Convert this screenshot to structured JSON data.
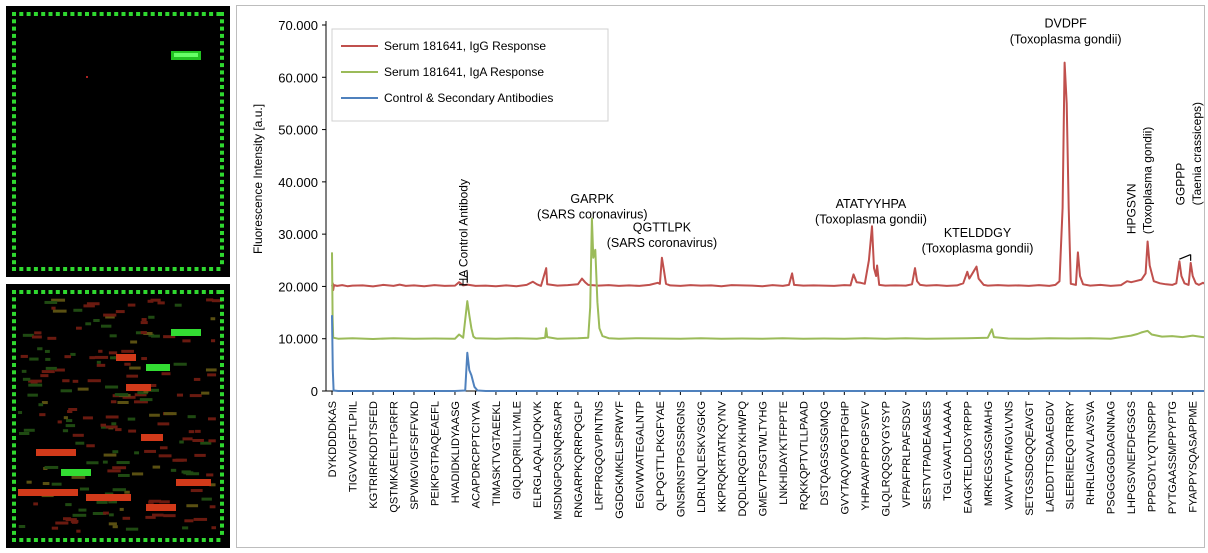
{
  "chart_data": {
    "type": "line",
    "ylabel": "Fluorescence Intensity [a.u.]",
    "ylim": [
      0,
      70000
    ],
    "yticks": [
      0,
      10000,
      20000,
      30000,
      40000,
      50000,
      60000,
      70000
    ],
    "ytick_labels": [
      "0",
      "10.000",
      "20.000",
      "30.000",
      "40.000",
      "50.000",
      "60.000",
      "70.000"
    ],
    "grid": false,
    "legend": "top-left",
    "categories": [
      "DYKDDDDKAS",
      "TIGVVVIGFTLPIIL",
      "KGTRIRFKDDTSFED",
      "QSTMKAEELTPGRFR",
      "SPVMGVIGFSFFVKD",
      "PEIKPGTPAQEAEFL",
      "HVADIDKLIDYAASG",
      "ACAPDRCPPTCIYVA",
      "TIMASKTVGTAEEKL",
      "GIQLDQRIILLYMLE",
      "ELRGLAQALIDQKVK",
      "MSDNGPQSNQRSAPR",
      "RNGARPKQRRPQGLP",
      "LRFPRGQGVPINTNS",
      "GGDGKMKELSPRWYF",
      "EGIVWVATEGALNTP",
      "QLPQGTTLPKGFYAE",
      "GNSRNSTPGSSRGNS",
      "LDRLNQLESKVSGKG",
      "KKPRQKRTATKQYNV",
      "DQDLIRQGDYKHWPQ",
      "GMEVTPSGTWLTYHG",
      "LNKHIDAYKTFPPTE",
      "RQKKQPTVTLLPAAD",
      "DSTQAGSGSGMQG",
      "GVYTAQVVPGTPGHP",
      "YHPAAVPPPGPSVFV",
      "GLQLRQQSQYGYSYP",
      "VFPAFPRLPAFSDSV",
      "SESTVTPADEAASES",
      "TGLGVAATLAAAAA",
      "EAGKTELDDGYRPPP",
      "MRKEGSGSGMAHG",
      "VAVVFVVFMGVLVNS",
      "SETGSSDGQQEAVGT",
      "LAEDDTTSDAAEGDV",
      "SLEERIEEQGTRRRY",
      "RHRLIGAVVLAVSVA",
      "PSGGGGGDAGNNAG",
      "LHPGSVNEFDFGSGS",
      "PPPGDYLYQTNSPPP",
      "PYTGAASSMPPYPTG",
      "FYAPPYSQASAPPME"
    ],
    "series": [
      {
        "name": "Serum 181641, IgG Response",
        "color": "#c0504d",
        "points": [
          [
            0.0,
            20000
          ],
          [
            0.04,
            20600
          ],
          [
            0.06,
            19300
          ],
          [
            0.1,
            20250
          ],
          [
            0.25,
            20100
          ],
          [
            0.5,
            20250
          ],
          [
            0.75,
            20050
          ],
          [
            1.0,
            20150
          ],
          [
            1.5,
            20200
          ],
          [
            2.0,
            20000
          ],
          [
            2.5,
            20300
          ],
          [
            3.0,
            20100
          ],
          [
            3.3,
            20350
          ],
          [
            3.6,
            20100
          ],
          [
            4.0,
            20200
          ],
          [
            4.5,
            20050
          ],
          [
            5.0,
            20250
          ],
          [
            5.5,
            20100
          ],
          [
            6.0,
            20150
          ],
          [
            6.2,
            20800
          ],
          [
            6.4,
            20200
          ],
          [
            6.6,
            20350
          ],
          [
            7.0,
            20100
          ],
          [
            7.5,
            20150
          ],
          [
            8.0,
            20050
          ],
          [
            8.5,
            20200
          ],
          [
            9.0,
            20050
          ],
          [
            9.5,
            20300
          ],
          [
            9.8,
            20900
          ],
          [
            10.0,
            20400
          ],
          [
            10.2,
            20100
          ],
          [
            10.45,
            23500
          ],
          [
            10.5,
            20400
          ],
          [
            11.0,
            20150
          ],
          [
            11.5,
            20250
          ],
          [
            12.0,
            20400
          ],
          [
            12.2,
            21500
          ],
          [
            12.35,
            20800
          ],
          [
            12.5,
            20300
          ],
          [
            13.0,
            20150
          ],
          [
            13.5,
            20250
          ],
          [
            14.0,
            20100
          ],
          [
            14.5,
            20200
          ],
          [
            15.0,
            20100
          ],
          [
            15.5,
            20300
          ],
          [
            15.9,
            20700
          ],
          [
            16.0,
            20500
          ],
          [
            16.1,
            25500
          ],
          [
            16.2,
            23000
          ],
          [
            16.3,
            20500
          ],
          [
            16.5,
            20200
          ],
          [
            17.0,
            20100
          ],
          [
            17.5,
            20250
          ],
          [
            18.0,
            20150
          ],
          [
            18.5,
            20200
          ],
          [
            19.0,
            20050
          ],
          [
            19.5,
            20250
          ],
          [
            20.0,
            20200
          ],
          [
            20.5,
            20150
          ],
          [
            21.0,
            20050
          ],
          [
            21.5,
            20250
          ],
          [
            22.0,
            20100
          ],
          [
            22.3,
            20300
          ],
          [
            22.45,
            22500
          ],
          [
            22.55,
            20300
          ],
          [
            23.0,
            20150
          ],
          [
            23.5,
            20200
          ],
          [
            24.0,
            20150
          ],
          [
            24.5,
            20100
          ],
          [
            25.0,
            20250
          ],
          [
            25.3,
            20200
          ],
          [
            25.45,
            22300
          ],
          [
            25.6,
            20800
          ],
          [
            25.8,
            20700
          ],
          [
            26.0,
            20500
          ],
          [
            26.2,
            25000
          ],
          [
            26.35,
            31500
          ],
          [
            26.45,
            23500
          ],
          [
            26.55,
            22000
          ],
          [
            26.6,
            24000
          ],
          [
            26.7,
            20300
          ],
          [
            27.0,
            20150
          ],
          [
            27.5,
            20200
          ],
          [
            28.0,
            20150
          ],
          [
            28.3,
            20400
          ],
          [
            28.45,
            23500
          ],
          [
            28.55,
            21000
          ],
          [
            28.7,
            20300
          ],
          [
            29.0,
            20150
          ],
          [
            29.5,
            20250
          ],
          [
            30.0,
            20100
          ],
          [
            30.5,
            20200
          ],
          [
            30.8,
            20600
          ],
          [
            31.0,
            22800
          ],
          [
            31.1,
            21500
          ],
          [
            31.3,
            22800
          ],
          [
            31.45,
            23800
          ],
          [
            31.55,
            21500
          ],
          [
            31.8,
            20300
          ],
          [
            32.0,
            20150
          ],
          [
            32.5,
            20250
          ],
          [
            33.0,
            20150
          ],
          [
            33.5,
            20200
          ],
          [
            34.0,
            20100
          ],
          [
            34.5,
            20250
          ],
          [
            35.0,
            20100
          ],
          [
            35.3,
            20300
          ],
          [
            35.5,
            21000
          ],
          [
            35.65,
            35000
          ],
          [
            35.75,
            62800
          ],
          [
            35.85,
            55000
          ],
          [
            35.95,
            35000
          ],
          [
            36.05,
            20500
          ],
          [
            36.3,
            20300
          ],
          [
            36.4,
            26500
          ],
          [
            36.5,
            22000
          ],
          [
            36.65,
            20400
          ],
          [
            37.0,
            20150
          ],
          [
            37.5,
            20300
          ],
          [
            38.0,
            20100
          ],
          [
            38.5,
            20250
          ],
          [
            38.8,
            21000
          ],
          [
            39.0,
            20800
          ],
          [
            39.2,
            21000
          ],
          [
            39.5,
            21300
          ],
          [
            39.7,
            22500
          ],
          [
            39.8,
            28600
          ],
          [
            39.9,
            24000
          ],
          [
            40.1,
            21000
          ],
          [
            40.4,
            20600
          ],
          [
            40.7,
            20400
          ],
          [
            41.0,
            20300
          ],
          [
            41.2,
            20600
          ],
          [
            41.35,
            24800
          ],
          [
            41.45,
            22000
          ],
          [
            41.6,
            20600
          ],
          [
            41.8,
            20300
          ],
          [
            41.9,
            24500
          ],
          [
            42.0,
            22000
          ],
          [
            42.15,
            20600
          ],
          [
            42.3,
            20300
          ],
          [
            42.5,
            20700
          ],
          [
            42.7,
            20300
          ],
          [
            42.85,
            21500
          ],
          [
            43.0,
            20200
          ]
        ]
      },
      {
        "name": "Serum 181641, IgA Response",
        "color": "#9bbb59",
        "points": [
          [
            0.0,
            26500
          ],
          [
            0.03,
            14000
          ],
          [
            0.06,
            10200
          ],
          [
            0.3,
            10000
          ],
          [
            1.0,
            10100
          ],
          [
            2.0,
            9950
          ],
          [
            3.0,
            10100
          ],
          [
            4.0,
            10000
          ],
          [
            5.0,
            10050
          ],
          [
            6.0,
            10000
          ],
          [
            6.2,
            10800
          ],
          [
            6.4,
            10200
          ],
          [
            6.6,
            17200
          ],
          [
            6.7,
            14500
          ],
          [
            6.8,
            12000
          ],
          [
            6.9,
            10400
          ],
          [
            7.0,
            10100
          ],
          [
            8.0,
            10000
          ],
          [
            9.0,
            10100
          ],
          [
            10.0,
            10000
          ],
          [
            10.4,
            10200
          ],
          [
            10.45,
            12000
          ],
          [
            10.5,
            10300
          ],
          [
            11.0,
            10000
          ],
          [
            12.0,
            10100
          ],
          [
            12.5,
            10200
          ],
          [
            12.6,
            16000
          ],
          [
            12.68,
            33000
          ],
          [
            12.75,
            25500
          ],
          [
            12.85,
            27000
          ],
          [
            12.95,
            17000
          ],
          [
            13.05,
            12000
          ],
          [
            13.2,
            10500
          ],
          [
            13.5,
            10100
          ],
          [
            14.0,
            10000
          ],
          [
            15.0,
            10100
          ],
          [
            16.0,
            10050
          ],
          [
            17.0,
            10000
          ],
          [
            18.0,
            10100
          ],
          [
            19.0,
            10000
          ],
          [
            20.0,
            10050
          ],
          [
            21.0,
            10000
          ],
          [
            22.0,
            10100
          ],
          [
            23.0,
            10000
          ],
          [
            24.0,
            10050
          ],
          [
            25.0,
            10000
          ],
          [
            26.0,
            10100
          ],
          [
            27.0,
            10000
          ],
          [
            28.0,
            10100
          ],
          [
            29.0,
            10000
          ],
          [
            30.0,
            10050
          ],
          [
            31.0,
            10100
          ],
          [
            32.0,
            10200
          ],
          [
            32.2,
            11800
          ],
          [
            32.3,
            10300
          ],
          [
            33.0,
            10050
          ],
          [
            34.0,
            10000
          ],
          [
            35.0,
            10100
          ],
          [
            36.0,
            10050
          ],
          [
            37.0,
            10100
          ],
          [
            38.0,
            10000
          ],
          [
            38.5,
            10300
          ],
          [
            39.0,
            10600
          ],
          [
            39.3,
            10900
          ],
          [
            39.5,
            11200
          ],
          [
            39.8,
            11500
          ],
          [
            40.0,
            10800
          ],
          [
            40.5,
            10400
          ],
          [
            41.0,
            10500
          ],
          [
            41.5,
            10300
          ],
          [
            42.0,
            10600
          ],
          [
            42.5,
            10300
          ],
          [
            43.0,
            10200
          ]
        ]
      },
      {
        "name": "Control & Secondary Antibodies",
        "color": "#4f81bd",
        "points": [
          [
            0.0,
            14500
          ],
          [
            0.04,
            4000
          ],
          [
            0.08,
            100
          ],
          [
            0.3,
            0
          ],
          [
            2.0,
            0
          ],
          [
            4.0,
            0
          ],
          [
            6.0,
            0
          ],
          [
            6.5,
            100
          ],
          [
            6.6,
            7300
          ],
          [
            6.7,
            4000
          ],
          [
            6.8,
            3000
          ],
          [
            6.95,
            800
          ],
          [
            7.1,
            100
          ],
          [
            7.5,
            0
          ],
          [
            10.0,
            0
          ],
          [
            20.0,
            0
          ],
          [
            30.0,
            0
          ],
          [
            40.0,
            0
          ],
          [
            43.0,
            0
          ]
        ]
      }
    ],
    "annotations": [
      {
        "text": "HA Control Antibody",
        "x": 6.6,
        "y": 20000,
        "rotate": true
      },
      {
        "text": "GARPK",
        "x": 12.7,
        "y": 36000
      },
      {
        "text": "(SARS coronavirus)",
        "x": 12.7,
        "y": 33000
      },
      {
        "text": "QGTTLPK",
        "x": 16.1,
        "y": 30500
      },
      {
        "text": "(SARS coronavirus)",
        "x": 16.1,
        "y": 27500
      },
      {
        "text": "ATATYYHPA",
        "x": 26.3,
        "y": 35000
      },
      {
        "text": "(Toxoplasma gondii)",
        "x": 26.3,
        "y": 32000
      },
      {
        "text": "KTELDDGY",
        "x": 31.5,
        "y": 29500
      },
      {
        "text": "(Toxoplasma gondii)",
        "x": 31.5,
        "y": 26500
      },
      {
        "text": "DVDPF",
        "x": 35.8,
        "y": 69500
      },
      {
        "text": "(Toxoplasma gondii)",
        "x": 35.8,
        "y": 66500
      },
      {
        "text": "HPGSVN",
        "x": 39.2,
        "y": 30000,
        "rotate": true
      },
      {
        "text": "(Toxoplasma gondii)",
        "x": 40.0,
        "y": 30000,
        "rotate": true
      },
      {
        "text": "GGPPP",
        "x": 41.6,
        "y": 35500,
        "rotate": true
      },
      {
        "text": "(Taenia crassiceps)",
        "x": 42.4,
        "y": 35500,
        "rotate": true
      }
    ]
  }
}
